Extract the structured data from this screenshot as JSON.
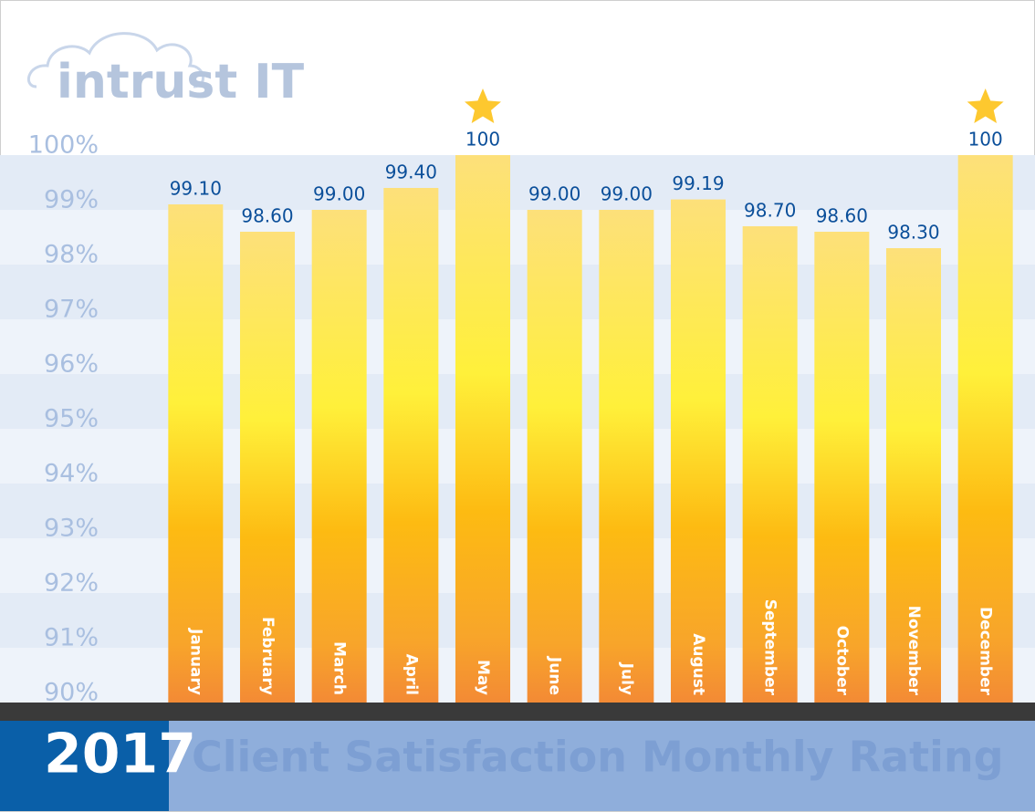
{
  "chart_data": {
    "type": "bar",
    "brand": "intrust IT",
    "year": "2017",
    "title": "Client Satisfaction Monthly Rating",
    "categories": [
      "January",
      "February",
      "March",
      "April",
      "May",
      "June",
      "July",
      "August",
      "September",
      "October",
      "November",
      "December"
    ],
    "values": [
      99.1,
      98.6,
      99.0,
      99.4,
      100,
      99.0,
      99.0,
      99.19,
      98.7,
      98.6,
      98.3,
      100
    ],
    "value_labels": [
      "99.10",
      "98.60",
      "99.00",
      "99.40",
      "100",
      "99.00",
      "99.00",
      "99.19",
      "98.70",
      "98.60",
      "98.30",
      "100"
    ],
    "ylim": [
      90,
      100
    ],
    "yticks": [
      {
        "value": 90,
        "label": "90%"
      },
      {
        "value": 91,
        "label": "91%"
      },
      {
        "value": 92,
        "label": "92%"
      },
      {
        "value": 93,
        "label": "93%"
      },
      {
        "value": 94,
        "label": "94%"
      },
      {
        "value": 95,
        "label": "95%"
      },
      {
        "value": 96,
        "label": "96%"
      },
      {
        "value": 97,
        "label": "97%"
      },
      {
        "value": 98,
        "label": "98%"
      },
      {
        "value": 99,
        "label": "99%"
      },
      {
        "value": 100,
        "label": "100%"
      }
    ],
    "grid": true
  }
}
